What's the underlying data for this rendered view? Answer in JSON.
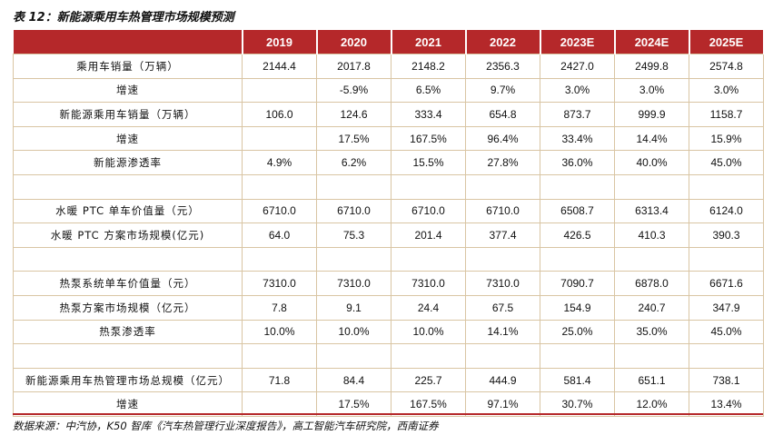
{
  "title": "表 12：新能源乘用车热管理市场规模预测",
  "headers": [
    "2019",
    "2020",
    "2021",
    "2022",
    "2023E",
    "2024E",
    "2025E"
  ],
  "rows": [
    {
      "label": "乘用车销量（万辆）",
      "values": [
        "2144.4",
        "2017.8",
        "2148.2",
        "2356.3",
        "2427.0",
        "2499.8",
        "2574.8"
      ]
    },
    {
      "label": "增速",
      "values": [
        "",
        "-5.9%",
        "6.5%",
        "9.7%",
        "3.0%",
        "3.0%",
        "3.0%"
      ]
    },
    {
      "label": "新能源乘用车销量（万辆）",
      "values": [
        "106.0",
        "124.6",
        "333.4",
        "654.8",
        "873.7",
        "999.9",
        "1158.7"
      ]
    },
    {
      "label": "增速",
      "values": [
        "",
        "17.5%",
        "167.5%",
        "96.4%",
        "33.4%",
        "14.4%",
        "15.9%"
      ]
    },
    {
      "label": "新能源渗透率",
      "values": [
        "4.9%",
        "6.2%",
        "15.5%",
        "27.8%",
        "36.0%",
        "40.0%",
        "45.0%"
      ]
    },
    {
      "label": "",
      "values": [
        "",
        "",
        "",
        "",
        "",
        "",
        ""
      ]
    },
    {
      "label": "水暖 PTC 单车价值量（元）",
      "values": [
        "6710.0",
        "6710.0",
        "6710.0",
        "6710.0",
        "6508.7",
        "6313.4",
        "6124.0"
      ]
    },
    {
      "label": "水暖 PTC 方案市场规模(亿元)",
      "values": [
        "64.0",
        "75.3",
        "201.4",
        "377.4",
        "426.5",
        "410.3",
        "390.3"
      ]
    },
    {
      "label": "",
      "values": [
        "",
        "",
        "",
        "",
        "",
        "",
        ""
      ]
    },
    {
      "label": "热泵系统单车价值量（元）",
      "values": [
        "7310.0",
        "7310.0",
        "7310.0",
        "7310.0",
        "7090.7",
        "6878.0",
        "6671.6"
      ]
    },
    {
      "label": "热泵方案市场规模（亿元）",
      "values": [
        "7.8",
        "9.1",
        "24.4",
        "67.5",
        "154.9",
        "240.7",
        "347.9"
      ]
    },
    {
      "label": "热泵渗透率",
      "values": [
        "10.0%",
        "10.0%",
        "10.0%",
        "14.1%",
        "25.0%",
        "35.0%",
        "45.0%"
      ]
    },
    {
      "label": "",
      "values": [
        "",
        "",
        "",
        "",
        "",
        "",
        ""
      ]
    },
    {
      "label": "新能源乘用车热管理市场总规模（亿元）",
      "values": [
        "71.8",
        "84.4",
        "225.7",
        "444.9",
        "581.4",
        "651.1",
        "738.1"
      ]
    },
    {
      "label": "增速",
      "values": [
        "",
        "17.5%",
        "167.5%",
        "97.1%",
        "30.7%",
        "12.0%",
        "13.4%"
      ]
    }
  ],
  "source": "数据来源：中汽协，K50 智库《汽车热管理行业深度报告》，高工智能汽车研究院，西南证券",
  "colors": {
    "header_bg": "#b5282a",
    "header_text": "#ffffff",
    "grid": "#d9c5a3"
  }
}
